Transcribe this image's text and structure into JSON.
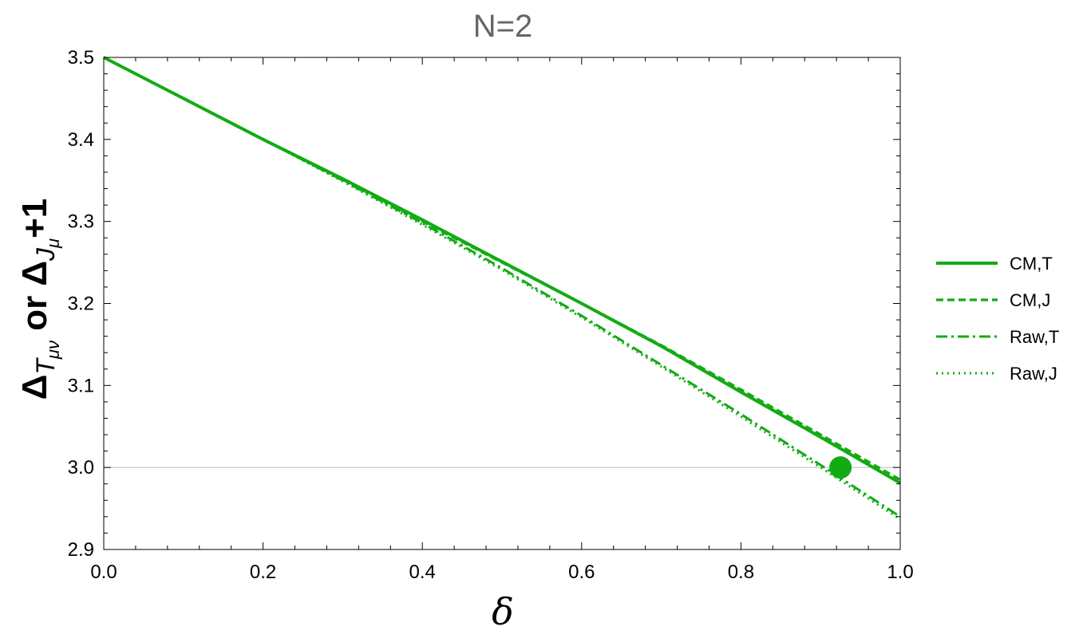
{
  "chart_data": {
    "type": "line",
    "title": "N=2",
    "xlabel": "δ",
    "ylabel": {
      "delta": "Δ",
      "sub1": "T",
      "sub1_index": "μν",
      "middle": " or ",
      "sub2": "J",
      "sub2_index": "μ",
      "suffix": "+1"
    },
    "xlim": [
      0,
      1
    ],
    "ylim": [
      2.9,
      3.5
    ],
    "x_ticks": [
      "0.0",
      "0.2",
      "0.4",
      "0.6",
      "0.8",
      "1.0"
    ],
    "y_ticks": [
      "2.9",
      "3.0",
      "3.1",
      "3.2",
      "3.3",
      "3.4",
      "3.5"
    ],
    "reference_line": {
      "y": 3.0
    },
    "marker": {
      "x": 0.925,
      "y": 3.0
    },
    "line_color": "#13AB13",
    "legend_position": "right",
    "series": [
      {
        "name": "CM,T",
        "style": "solid",
        "x": [
          0,
          0.1,
          0.2,
          0.3,
          0.4,
          0.5,
          0.6,
          0.7,
          0.8,
          0.9,
          1.0
        ],
        "y": [
          3.5,
          3.45,
          3.4,
          3.352,
          3.302,
          3.251,
          3.2,
          3.148,
          3.092,
          3.037,
          2.981
        ]
      },
      {
        "name": "CM,J",
        "style": "dashed",
        "x": [
          0,
          0.1,
          0.2,
          0.3,
          0.4,
          0.5,
          0.6,
          0.7,
          0.8,
          0.9,
          1.0
        ],
        "y": [
          3.5,
          3.45,
          3.4,
          3.351,
          3.3,
          3.25,
          3.2,
          3.149,
          3.095,
          3.04,
          2.985
        ]
      },
      {
        "name": "Raw,T",
        "style": "dashdot",
        "x": [
          0,
          0.1,
          0.2,
          0.3,
          0.4,
          0.5,
          0.6,
          0.7,
          0.8,
          0.9,
          1.0
        ],
        "y": [
          3.5,
          3.45,
          3.4,
          3.35,
          3.298,
          3.243,
          3.185,
          3.125,
          3.065,
          3.003,
          2.94
        ]
      },
      {
        "name": "Raw,J",
        "style": "dotted",
        "x": [
          0,
          0.1,
          0.2,
          0.3,
          0.4,
          0.5,
          0.6,
          0.7,
          0.8,
          0.9,
          1.0
        ],
        "y": [
          3.5,
          3.45,
          3.4,
          3.349,
          3.296,
          3.241,
          3.183,
          3.123,
          3.062,
          3.0,
          2.937
        ]
      }
    ]
  }
}
